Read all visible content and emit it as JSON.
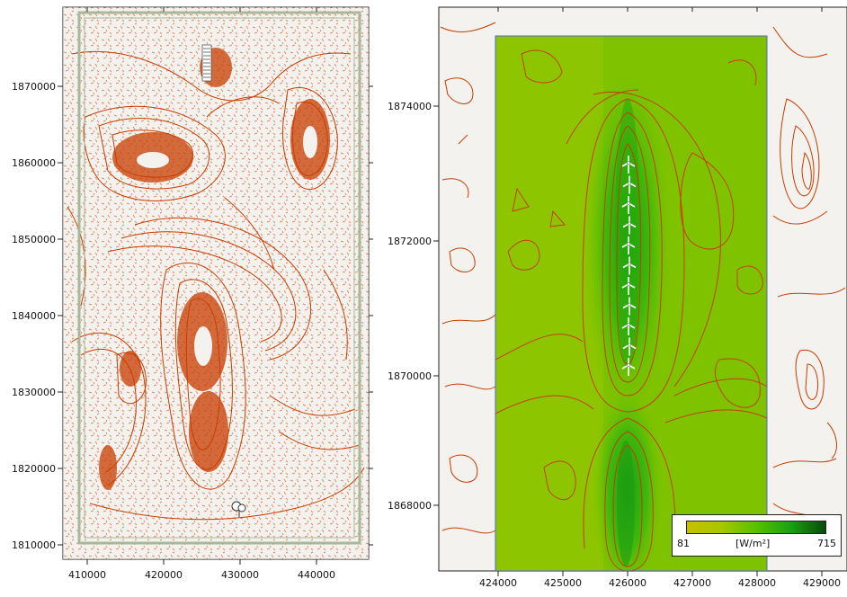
{
  "left_map": {
    "x_ticks": [
      "410000",
      "420000",
      "430000",
      "440000"
    ],
    "y_ticks": [
      "1870000",
      "1860000",
      "1850000",
      "1840000",
      "1830000",
      "1820000",
      "1810000"
    ],
    "colors": {
      "background": "#f4f2ee",
      "contour": "#c83c00",
      "boundary": "#a8b89a"
    }
  },
  "right_map": {
    "x_ticks": [
      "424000",
      "425000",
      "426000",
      "427000",
      "428000",
      "429000"
    ],
    "y_ticks": [
      "1874000",
      "1872000",
      "1870000",
      "1868000"
    ],
    "turbine_count": 11,
    "colors": {
      "background": "#f4f2ee",
      "contour": "#c83c00",
      "area_border": "#5566cc"
    }
  },
  "legend": {
    "min": "81",
    "max": "715",
    "unit": "[W/m²]",
    "colors": [
      "#c8c000",
      "#a6c800",
      "#58c000",
      "#1aa010",
      "#0a4a0a"
    ]
  }
}
